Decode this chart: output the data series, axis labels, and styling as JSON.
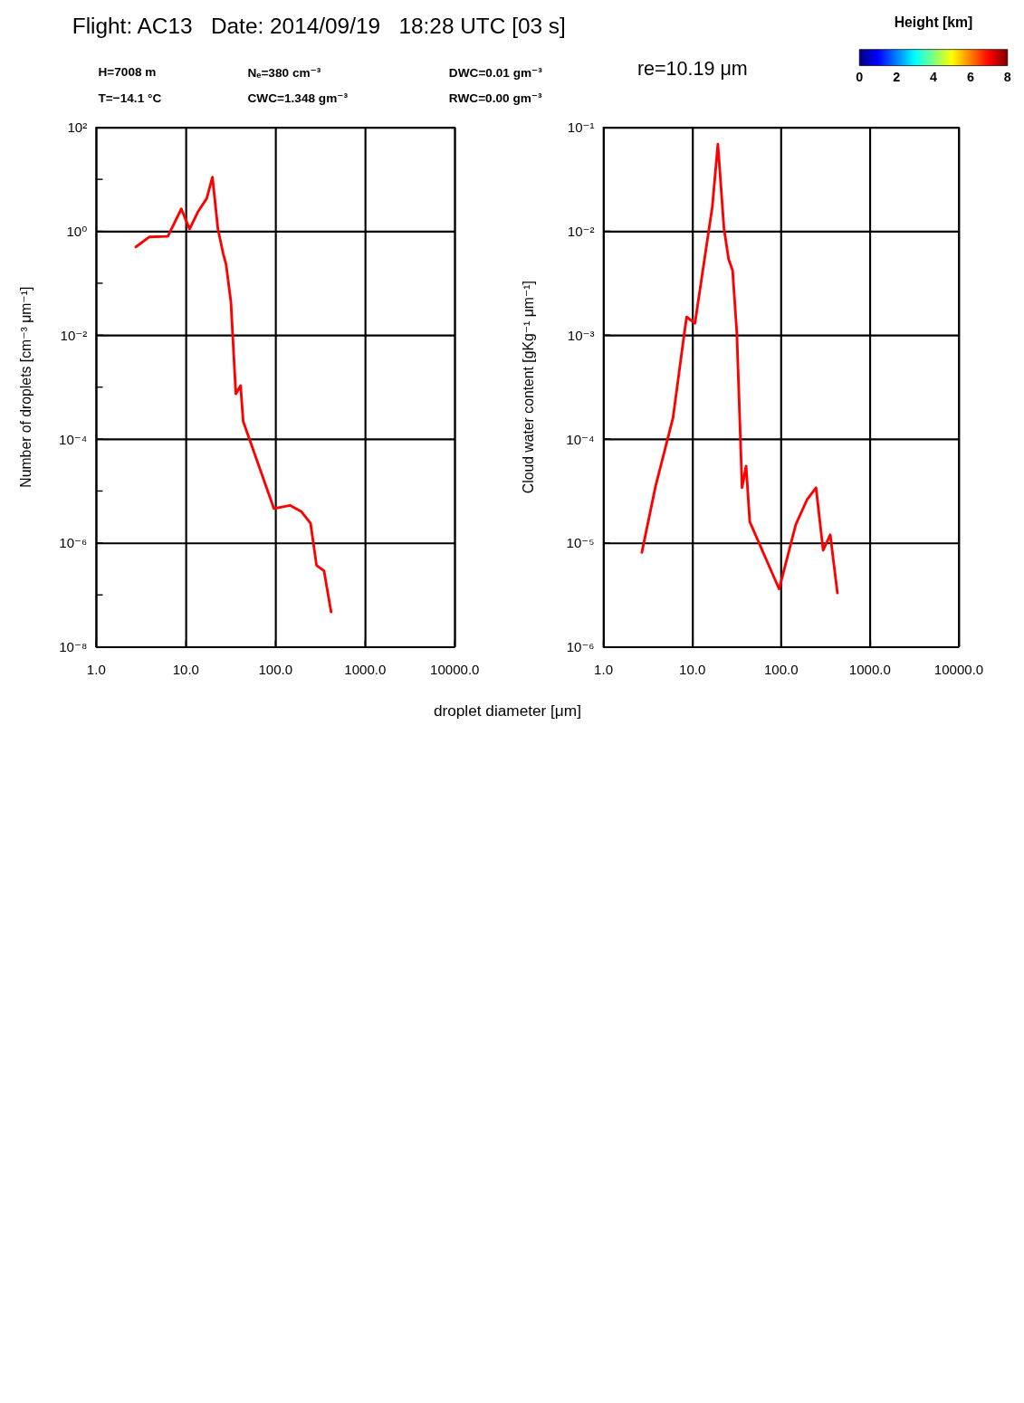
{
  "chart_data": [
    {
      "type": "line",
      "title": "Flight: AC13   Date: 2014/09/19   18:28 UTC [03 s]",
      "annotations": [
        "H=7008 m",
        "T=−14.1 °C",
        "Nₑ=380 cm⁻³",
        "CWC=1.348 gm⁻³",
        "DWC=0.01 gm⁻³",
        "RWC=0.00 gm⁻³"
      ],
      "xlabel": "droplet diameter [μm]",
      "ylabel": "Number of droplets [cm⁻³ μm⁻¹]",
      "series": [
        {
          "color": "#ff0000",
          "x": [
            2.77,
            3.93,
            6.3,
            8.9,
            11.0,
            13.7,
            17.1,
            19.8,
            22.8,
            26.1,
            28.1,
            31.8,
            36.1,
            40.8,
            43.6,
            95.9,
            145,
            195,
            246,
            287,
            348,
            417
          ],
          "values": [
            0.5,
            0.78,
            0.8,
            2.7,
            1.1,
            2.4,
            4.3,
            11,
            1.1,
            0.37,
            0.23,
            0.044,
            0.00074,
            0.00107,
            0.00022,
            4.6e-06,
            5.3e-06,
            4e-06,
            2.4e-06,
            3.7e-07,
            2.9e-07,
            4.7e-08
          ]
        }
      ],
      "xlim": [
        1,
        10000
      ],
      "ylim": [
        1e-08,
        100
      ],
      "log": "xy",
      "grid": true,
      "marker": "none",
      "line_style": "solid",
      "xticks": [
        {
          "value": 1,
          "label": "1.0"
        },
        {
          "value": 10,
          "label": "10.0"
        },
        {
          "value": 100,
          "label": "100.0"
        },
        {
          "value": 1000,
          "label": "1000.0"
        },
        {
          "value": 10000,
          "label": "10000.0"
        }
      ],
      "yticks": [
        {
          "value": 1e-08,
          "label": "10⁻⁸"
        },
        {
          "value": 1e-07,
          "label": null
        },
        {
          "value": 1e-06,
          "label": "10⁻⁶"
        },
        {
          "value": 1e-05,
          "label": null
        },
        {
          "value": 0.0001,
          "label": "10⁻⁴"
        },
        {
          "value": 0.001,
          "label": null
        },
        {
          "value": 0.01,
          "label": "10⁻²"
        },
        {
          "value": 0.1,
          "label": null
        },
        {
          "value": 1,
          "label": "10⁰"
        },
        {
          "value": 10,
          "label": null
        },
        {
          "value": 100,
          "label": "10²"
        }
      ]
    },
    {
      "type": "line",
      "annotations": [
        "re=10.19 μm"
      ],
      "ylabel": "Cloud water content [gKg⁻¹ μm⁻¹]",
      "clabel": "Height [km]",
      "clim": [
        0,
        8
      ],
      "cticks": [
        0,
        2,
        4,
        6,
        8
      ],
      "series": [
        {
          "color": "#ff0000",
          "x": [
            2.7,
            3.85,
            6.06,
            8.07,
            8.63,
            10.7,
            16.8,
            19.4,
            22.7,
            25.6,
            28.4,
            31.7,
            36.3,
            40.3,
            44.3,
            94.9,
            146,
            195,
            247,
            297,
            357,
            430
          ],
          "values": [
            8.1e-06,
            3.5e-05,
            0.00016,
            0.001,
            0.0015,
            0.0013,
            0.0173,
            0.069,
            0.0107,
            0.0054,
            0.0042,
            0.00105,
            3.4e-05,
            5.5e-05,
            1.6e-05,
            3.6e-06,
            1.5e-05,
            2.6e-05,
            3.4e-05,
            8.5e-06,
            1.2e-05,
            3.3e-06
          ]
        }
      ],
      "xlim": [
        1,
        10000
      ],
      "ylim": [
        1e-06,
        0.1
      ],
      "log": "xy",
      "grid": true,
      "marker": "none",
      "line_style": "solid",
      "xticks": [
        {
          "value": 1,
          "label": "1.0"
        },
        {
          "value": 10,
          "label": "10.0"
        },
        {
          "value": 100,
          "label": "100.0"
        },
        {
          "value": 1000,
          "label": "1000.0"
        },
        {
          "value": 10000,
          "label": "10000.0"
        }
      ],
      "yticks": [
        {
          "value": 1e-06,
          "label": "10⁻⁶"
        },
        {
          "value": 1e-05,
          "label": "10⁻⁵"
        },
        {
          "value": 0.0001,
          "label": "10⁻⁴"
        },
        {
          "value": 0.001,
          "label": "10⁻³"
        },
        {
          "value": 0.01,
          "label": "10⁻²"
        },
        {
          "value": 0.1,
          "label": "10⁻¹"
        }
      ]
    }
  ]
}
